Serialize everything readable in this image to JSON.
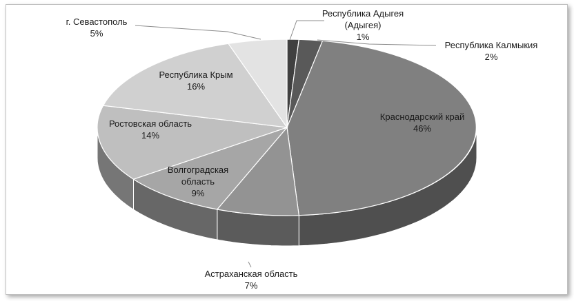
{
  "chart_data": {
    "type": "pie",
    "style": "3d",
    "slices": [
      {
        "label": [
          "Республика Адыгея",
          "(Адыгея)"
        ],
        "percent_label": "1%",
        "value": 1,
        "color": "#404040"
      },
      {
        "label": [
          "Республика Калмыкия"
        ],
        "percent_label": "2%",
        "value": 2,
        "color": "#595959"
      },
      {
        "label": [
          "Краснодарский край"
        ],
        "percent_label": "46%",
        "value": 46,
        "color": "#808080"
      },
      {
        "label": [
          "Астраханская область"
        ],
        "percent_label": "7%",
        "value": 7,
        "color": "#939393"
      },
      {
        "label": [
          "Волгоградская",
          "область"
        ],
        "percent_label": "9%",
        "value": 9,
        "color": "#a6a6a6"
      },
      {
        "label": [
          "Ростовская область"
        ],
        "percent_label": "14%",
        "value": 14,
        "color": "#bfbfbf"
      },
      {
        "label": [
          "Республика Крым"
        ],
        "percent_label": "16%",
        "value": 16,
        "color": "#d0d0d0"
      },
      {
        "label": [
          "г. Севастополь"
        ],
        "percent_label": "5%",
        "value": 5,
        "color": "#e3e3e3"
      }
    ],
    "legend": "none",
    "data_labels": "category and percent"
  }
}
